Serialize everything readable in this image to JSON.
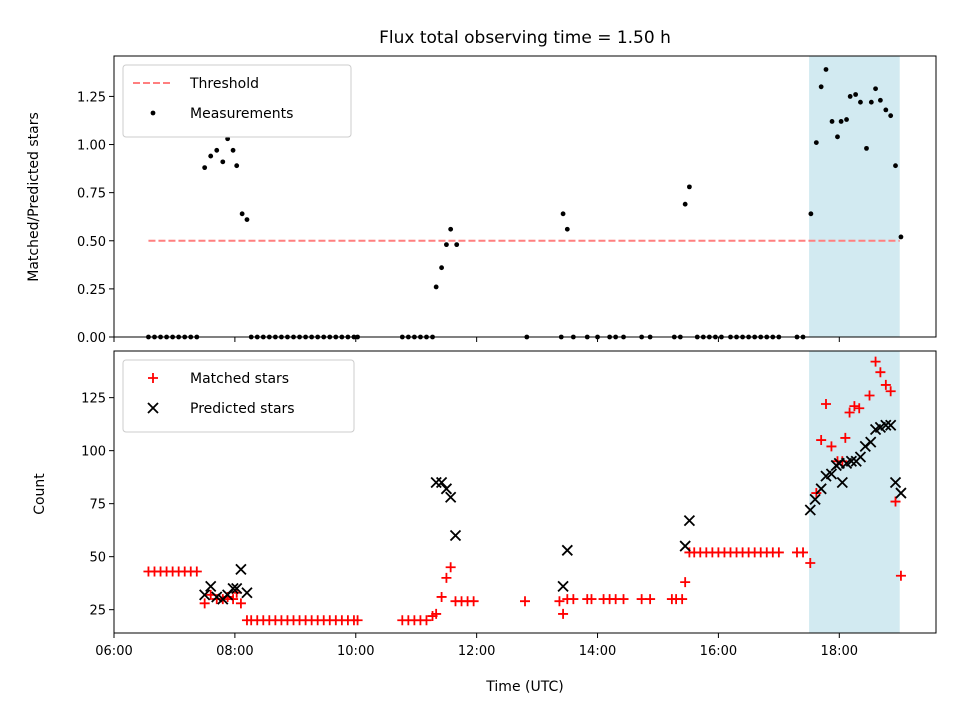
{
  "chart_data": [
    {
      "type": "scatter",
      "title": "Flux total observing time = 1.50 h",
      "ylabel": "Matched/Predicted stars",
      "xlabel": "",
      "xlim": [
        6.0,
        19.6
      ],
      "ylim": [
        0.0,
        1.46
      ],
      "yticks": [
        0.0,
        0.25,
        0.5,
        0.75,
        1.0,
        1.25
      ],
      "ytick_labels": [
        "0.00",
        "0.25",
        "0.50",
        "0.75",
        "1.00",
        "1.25"
      ],
      "highlight_span": [
        17.5,
        19.0
      ],
      "highlight_color": "#add8e6",
      "threshold": {
        "name": "Threshold",
        "value": 0.5,
        "x_start": 6.57,
        "x_end": 19.0,
        "color": "#ff7f7f"
      },
      "legend_placement": "top-left",
      "series": [
        {
          "name": "Measurements",
          "color": "#000000",
          "points": [
            [
              6.57,
              0
            ],
            [
              6.67,
              0
            ],
            [
              6.77,
              0
            ],
            [
              6.87,
              0
            ],
            [
              6.97,
              0
            ],
            [
              7.07,
              0
            ],
            [
              7.17,
              0
            ],
            [
              7.27,
              0
            ],
            [
              7.37,
              0
            ],
            [
              7.5,
              0.88
            ],
            [
              7.6,
              0.94
            ],
            [
              7.7,
              0.97
            ],
            [
              7.8,
              0.91
            ],
            [
              7.88,
              1.03
            ],
            [
              7.97,
              0.97
            ],
            [
              8.03,
              0.89
            ],
            [
              8.12,
              0.64
            ],
            [
              8.2,
              0.61
            ],
            [
              8.27,
              0
            ],
            [
              8.37,
              0
            ],
            [
              8.47,
              0
            ],
            [
              8.57,
              0
            ],
            [
              8.67,
              0
            ],
            [
              8.77,
              0
            ],
            [
              8.87,
              0
            ],
            [
              8.97,
              0
            ],
            [
              9.07,
              0
            ],
            [
              9.17,
              0
            ],
            [
              9.27,
              0
            ],
            [
              9.37,
              0
            ],
            [
              9.47,
              0
            ],
            [
              9.57,
              0
            ],
            [
              9.67,
              0
            ],
            [
              9.77,
              0
            ],
            [
              9.87,
              0
            ],
            [
              9.97,
              0
            ],
            [
              10.03,
              0
            ],
            [
              10.77,
              0
            ],
            [
              10.87,
              0
            ],
            [
              10.97,
              0
            ],
            [
              11.07,
              0
            ],
            [
              11.17,
              0
            ],
            [
              11.27,
              0
            ],
            [
              11.33,
              0.26
            ],
            [
              11.42,
              0.36
            ],
            [
              11.5,
              0.48
            ],
            [
              11.57,
              0.56
            ],
            [
              11.67,
              0.48
            ],
            [
              12.83,
              0
            ],
            [
              13.4,
              0
            ],
            [
              13.43,
              0.64
            ],
            [
              13.5,
              0.56
            ],
            [
              13.6,
              0
            ],
            [
              13.83,
              0
            ],
            [
              14.0,
              0
            ],
            [
              14.2,
              0
            ],
            [
              14.3,
              0
            ],
            [
              14.43,
              0
            ],
            [
              14.73,
              0
            ],
            [
              14.87,
              0
            ],
            [
              15.27,
              0
            ],
            [
              15.37,
              0
            ],
            [
              15.45,
              0.69
            ],
            [
              15.52,
              0.78
            ],
            [
              15.65,
              0
            ],
            [
              15.75,
              0
            ],
            [
              15.85,
              0
            ],
            [
              15.95,
              0
            ],
            [
              16.05,
              0
            ],
            [
              16.2,
              0
            ],
            [
              16.3,
              0
            ],
            [
              16.4,
              0
            ],
            [
              16.5,
              0
            ],
            [
              16.6,
              0
            ],
            [
              16.7,
              0
            ],
            [
              16.8,
              0
            ],
            [
              16.9,
              0
            ],
            [
              17.0,
              0
            ],
            [
              17.3,
              0
            ],
            [
              17.4,
              0
            ],
            [
              17.53,
              0.64
            ],
            [
              17.62,
              1.01
            ],
            [
              17.7,
              1.3
            ],
            [
              17.78,
              1.39
            ],
            [
              17.88,
              1.12
            ],
            [
              17.97,
              1.04
            ],
            [
              18.03,
              1.12
            ],
            [
              18.12,
              1.13
            ],
            [
              18.18,
              1.25
            ],
            [
              18.27,
              1.26
            ],
            [
              18.35,
              1.22
            ],
            [
              18.45,
              0.98
            ],
            [
              18.53,
              1.22
            ],
            [
              18.6,
              1.29
            ],
            [
              18.68,
              1.23
            ],
            [
              18.77,
              1.18
            ],
            [
              18.85,
              1.15
            ],
            [
              18.93,
              0.89
            ],
            [
              19.02,
              0.52
            ]
          ]
        }
      ]
    },
    {
      "type": "scatter",
      "title": "",
      "xlabel": "Time (UTC)",
      "ylabel": "Count",
      "xlim": [
        6.0,
        19.6
      ],
      "ylim": [
        14,
        147
      ],
      "xticks": [
        6,
        8,
        10,
        12,
        14,
        16,
        18
      ],
      "xtick_labels": [
        "06:00",
        "08:00",
        "10:00",
        "12:00",
        "14:00",
        "16:00",
        "18:00"
      ],
      "yticks": [
        25,
        50,
        75,
        100,
        125
      ],
      "ytick_labels": [
        "25",
        "50",
        "75",
        "100",
        "125"
      ],
      "highlight_span": [
        17.5,
        19.0
      ],
      "highlight_color": "#add8e6",
      "legend_placement": "top-left",
      "series": [
        {
          "name": "Matched stars",
          "marker": "plus",
          "color": "#ff0000",
          "points": [
            [
              6.57,
              43
            ],
            [
              6.67,
              43
            ],
            [
              6.77,
              43
            ],
            [
              6.87,
              43
            ],
            [
              6.97,
              43
            ],
            [
              7.07,
              43
            ],
            [
              7.17,
              43
            ],
            [
              7.27,
              43
            ],
            [
              7.37,
              43
            ],
            [
              7.5,
              28
            ],
            [
              7.6,
              32
            ],
            [
              7.7,
              30
            ],
            [
              7.8,
              30
            ],
            [
              7.88,
              31
            ],
            [
              7.97,
              30
            ],
            [
              8.03,
              33
            ],
            [
              8.1,
              28
            ],
            [
              8.2,
              20
            ],
            [
              8.27,
              20
            ],
            [
              8.37,
              20
            ],
            [
              8.47,
              20
            ],
            [
              8.57,
              20
            ],
            [
              8.67,
              20
            ],
            [
              8.77,
              20
            ],
            [
              8.87,
              20
            ],
            [
              8.97,
              20
            ],
            [
              9.07,
              20
            ],
            [
              9.17,
              20
            ],
            [
              9.27,
              20
            ],
            [
              9.37,
              20
            ],
            [
              9.47,
              20
            ],
            [
              9.57,
              20
            ],
            [
              9.67,
              20
            ],
            [
              9.77,
              20
            ],
            [
              9.87,
              20
            ],
            [
              9.97,
              20
            ],
            [
              10.03,
              20
            ],
            [
              10.77,
              20
            ],
            [
              10.87,
              20
            ],
            [
              10.97,
              20
            ],
            [
              11.07,
              20
            ],
            [
              11.17,
              20
            ],
            [
              11.27,
              22
            ],
            [
              11.33,
              23
            ],
            [
              11.42,
              31
            ],
            [
              11.5,
              40
            ],
            [
              11.57,
              45
            ],
            [
              11.65,
              29
            ],
            [
              11.75,
              29
            ],
            [
              11.85,
              29
            ],
            [
              11.95,
              29
            ],
            [
              12.8,
              29
            ],
            [
              13.37,
              29
            ],
            [
              13.43,
              23
            ],
            [
              13.5,
              30
            ],
            [
              13.6,
              30
            ],
            [
              13.83,
              30
            ],
            [
              13.9,
              30
            ],
            [
              14.1,
              30
            ],
            [
              14.2,
              30
            ],
            [
              14.3,
              30
            ],
            [
              14.43,
              30
            ],
            [
              14.73,
              30
            ],
            [
              14.87,
              30
            ],
            [
              15.23,
              30
            ],
            [
              15.3,
              30
            ],
            [
              15.4,
              30
            ],
            [
              15.45,
              38
            ],
            [
              15.52,
              52
            ],
            [
              15.6,
              52
            ],
            [
              15.7,
              52
            ],
            [
              15.8,
              52
            ],
            [
              15.9,
              52
            ],
            [
              16.0,
              52
            ],
            [
              16.1,
              52
            ],
            [
              16.2,
              52
            ],
            [
              16.3,
              52
            ],
            [
              16.4,
              52
            ],
            [
              16.5,
              52
            ],
            [
              16.6,
              52
            ],
            [
              16.7,
              52
            ],
            [
              16.8,
              52
            ],
            [
              16.9,
              52
            ],
            [
              17.0,
              52
            ],
            [
              17.3,
              52
            ],
            [
              17.4,
              52
            ],
            [
              17.52,
              47
            ],
            [
              17.62,
              80
            ],
            [
              17.7,
              105
            ],
            [
              17.78,
              122
            ],
            [
              17.87,
              102
            ],
            [
              17.97,
              95
            ],
            [
              18.05,
              95
            ],
            [
              18.1,
              106
            ],
            [
              18.17,
              118
            ],
            [
              18.25,
              121
            ],
            [
              18.33,
              120
            ],
            [
              18.5,
              126
            ],
            [
              18.6,
              142
            ],
            [
              18.68,
              137
            ],
            [
              18.77,
              131
            ],
            [
              18.85,
              128
            ],
            [
              18.93,
              76
            ],
            [
              19.02,
              41
            ]
          ]
        },
        {
          "name": "Predicted stars",
          "marker": "x",
          "color": "#000000",
          "points": [
            [
              7.5,
              32
            ],
            [
              7.6,
              36
            ],
            [
              7.7,
              31
            ],
            [
              7.8,
              30
            ],
            [
              7.88,
              32
            ],
            [
              7.97,
              35
            ],
            [
              8.03,
              35
            ],
            [
              8.1,
              44
            ],
            [
              8.2,
              33
            ],
            [
              11.33,
              85
            ],
            [
              11.42,
              85
            ],
            [
              11.5,
              82
            ],
            [
              11.57,
              78
            ],
            [
              11.65,
              60
            ],
            [
              13.43,
              36
            ],
            [
              13.5,
              53
            ],
            [
              15.45,
              55
            ],
            [
              15.52,
              67
            ],
            [
              17.52,
              72
            ],
            [
              17.6,
              77
            ],
            [
              17.7,
              82
            ],
            [
              17.78,
              88
            ],
            [
              17.87,
              89
            ],
            [
              17.95,
              93
            ],
            [
              18.0,
              94
            ],
            [
              18.05,
              85
            ],
            [
              18.12,
              94
            ],
            [
              18.2,
              95
            ],
            [
              18.28,
              95
            ],
            [
              18.35,
              97
            ],
            [
              18.43,
              102
            ],
            [
              18.52,
              104
            ],
            [
              18.6,
              110
            ],
            [
              18.68,
              111
            ],
            [
              18.77,
              112
            ],
            [
              18.85,
              112
            ],
            [
              18.93,
              85
            ],
            [
              19.02,
              80
            ]
          ]
        }
      ]
    }
  ]
}
